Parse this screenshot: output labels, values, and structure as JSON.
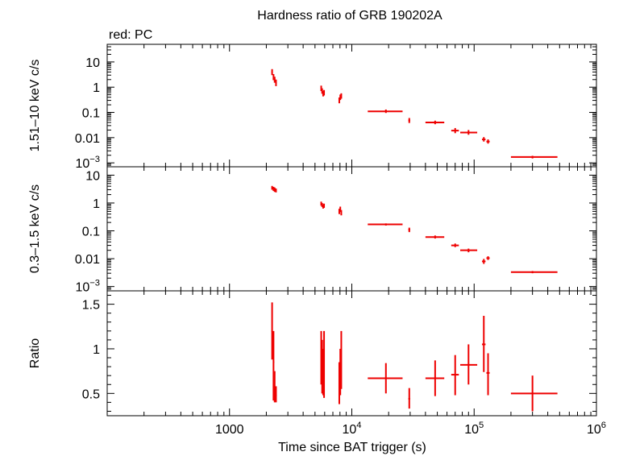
{
  "chart_data": {
    "type": "scatter",
    "title": "Hardness ratio of GRB 190202A",
    "subtitle": "red: PC",
    "xlabel": "Time since BAT trigger (s)",
    "x_scale": "log",
    "xlim": [
      100,
      1000000
    ],
    "x_tick_labels": [
      {
        "value": 1000,
        "label": "1000"
      },
      {
        "value": 10000,
        "label": "10",
        "sup": "4"
      },
      {
        "value": 100000,
        "label": "10",
        "sup": "5"
      },
      {
        "value": 1000000,
        "label": "10",
        "sup": "6"
      }
    ],
    "color": "#ee0000",
    "panels": [
      {
        "name": "hard",
        "ylabel": "1.51–10 keV c/s",
        "y_scale": "log",
        "ylim": [
          0.0007,
          50
        ],
        "y_tick_labels": [
          {
            "value": 10,
            "label": "10"
          },
          {
            "value": 1,
            "label": "1"
          },
          {
            "value": 0.1,
            "label": "0.1"
          },
          {
            "value": 0.01,
            "label": "0.01"
          },
          {
            "value": 0.001,
            "label": "10",
            "sup": "−3"
          }
        ],
        "points": [
          {
            "x": 2230,
            "y": 4.0,
            "xlo": 2200,
            "xhi": 2260,
            "ylo": 3.0,
            "yhi": 5.2
          },
          {
            "x": 2290,
            "y": 2.5,
            "xlo": 2260,
            "xhi": 2320,
            "ylo": 1.9,
            "yhi": 3.3
          },
          {
            "x": 2340,
            "y": 2.0,
            "xlo": 2310,
            "xhi": 2370,
            "ylo": 1.5,
            "yhi": 2.6
          },
          {
            "x": 2400,
            "y": 1.5,
            "xlo": 2370,
            "xhi": 2430,
            "ylo": 1.1,
            "yhi": 2.0
          },
          {
            "x": 5620,
            "y": 0.9,
            "xlo": 5580,
            "xhi": 5660,
            "ylo": 0.7,
            "yhi": 1.15
          },
          {
            "x": 5720,
            "y": 0.7,
            "xlo": 5680,
            "xhi": 5760,
            "ylo": 0.55,
            "yhi": 0.9
          },
          {
            "x": 5830,
            "y": 0.55,
            "xlo": 5790,
            "xhi": 5870,
            "ylo": 0.43,
            "yhi": 0.7
          },
          {
            "x": 5930,
            "y": 0.6,
            "xlo": 5890,
            "xhi": 5970,
            "ylo": 0.47,
            "yhi": 0.77
          },
          {
            "x": 7900,
            "y": 0.3,
            "xlo": 7850,
            "xhi": 7950,
            "ylo": 0.23,
            "yhi": 0.39
          },
          {
            "x": 8050,
            "y": 0.4,
            "xlo": 8000,
            "xhi": 8100,
            "ylo": 0.31,
            "yhi": 0.51
          },
          {
            "x": 8200,
            "y": 0.45,
            "xlo": 8150,
            "xhi": 8250,
            "ylo": 0.35,
            "yhi": 0.57
          },
          {
            "x": 19000,
            "y": 0.11,
            "xlo": 13500,
            "xhi": 26000,
            "ylo": 0.095,
            "yhi": 0.13
          },
          {
            "x": 29500,
            "y": 0.048,
            "xlo": 29000,
            "xhi": 30000,
            "ylo": 0.038,
            "yhi": 0.06
          },
          {
            "x": 48000,
            "y": 0.04,
            "xlo": 40000,
            "xhi": 57000,
            "ylo": 0.034,
            "yhi": 0.047
          },
          {
            "x": 70000,
            "y": 0.019,
            "xlo": 65000,
            "xhi": 75000,
            "ylo": 0.015,
            "yhi": 0.024
          },
          {
            "x": 90000,
            "y": 0.016,
            "xlo": 77000,
            "xhi": 106000,
            "ylo": 0.013,
            "yhi": 0.02
          },
          {
            "x": 120000,
            "y": 0.0085,
            "xlo": 116000,
            "xhi": 124000,
            "ylo": 0.007,
            "yhi": 0.0105
          },
          {
            "x": 130000,
            "y": 0.007,
            "xlo": 126000,
            "xhi": 134000,
            "ylo": 0.0058,
            "yhi": 0.0085
          },
          {
            "x": 300000,
            "y": 0.0017,
            "xlo": 200000,
            "xhi": 480000,
            "ylo": 0.0015,
            "yhi": 0.0019
          }
        ]
      },
      {
        "name": "soft",
        "ylabel": "0.3–1.5 keV c/s",
        "y_scale": "log",
        "ylim": [
          0.0007,
          20
        ],
        "y_tick_labels": [
          {
            "value": 10,
            "label": "10"
          },
          {
            "value": 1,
            "label": "1"
          },
          {
            "value": 0.1,
            "label": "0.1"
          },
          {
            "value": 0.01,
            "label": "0.01"
          },
          {
            "value": 0.001,
            "label": "10",
            "sup": "−3"
          }
        ],
        "points": [
          {
            "x": 2230,
            "y": 3.5,
            "xlo": 2200,
            "xhi": 2260,
            "ylo": 3.0,
            "yhi": 4.1
          },
          {
            "x": 2290,
            "y": 3.2,
            "xlo": 2260,
            "xhi": 2320,
            "ylo": 2.7,
            "yhi": 3.8
          },
          {
            "x": 2340,
            "y": 3.0,
            "xlo": 2310,
            "xhi": 2370,
            "ylo": 2.5,
            "yhi": 3.6
          },
          {
            "x": 2400,
            "y": 2.8,
            "xlo": 2370,
            "xhi": 2430,
            "ylo": 2.4,
            "yhi": 3.3
          },
          {
            "x": 5620,
            "y": 0.95,
            "xlo": 5580,
            "xhi": 5660,
            "ylo": 0.8,
            "yhi": 1.12
          },
          {
            "x": 5720,
            "y": 0.85,
            "xlo": 5680,
            "xhi": 5760,
            "ylo": 0.72,
            "yhi": 1.0
          },
          {
            "x": 5830,
            "y": 0.75,
            "xlo": 5790,
            "xhi": 5870,
            "ylo": 0.63,
            "yhi": 0.89
          },
          {
            "x": 5930,
            "y": 0.8,
            "xlo": 5890,
            "xhi": 5970,
            "ylo": 0.67,
            "yhi": 0.95
          },
          {
            "x": 7900,
            "y": 0.5,
            "xlo": 7850,
            "xhi": 7950,
            "ylo": 0.4,
            "yhi": 0.62
          },
          {
            "x": 8050,
            "y": 0.6,
            "xlo": 8000,
            "xhi": 8100,
            "ylo": 0.48,
            "yhi": 0.74
          },
          {
            "x": 8200,
            "y": 0.45,
            "xlo": 8150,
            "xhi": 8250,
            "ylo": 0.36,
            "yhi": 0.56
          },
          {
            "x": 19000,
            "y": 0.17,
            "xlo": 13500,
            "xhi": 26000,
            "ylo": 0.155,
            "yhi": 0.185
          },
          {
            "x": 29500,
            "y": 0.11,
            "xlo": 29000,
            "xhi": 30000,
            "ylo": 0.09,
            "yhi": 0.13
          },
          {
            "x": 48000,
            "y": 0.06,
            "xlo": 40000,
            "xhi": 57000,
            "ylo": 0.053,
            "yhi": 0.068
          },
          {
            "x": 70000,
            "y": 0.03,
            "xlo": 65000,
            "xhi": 75000,
            "ylo": 0.026,
            "yhi": 0.035
          },
          {
            "x": 90000,
            "y": 0.02,
            "xlo": 77000,
            "xhi": 106000,
            "ylo": 0.017,
            "yhi": 0.023
          },
          {
            "x": 120000,
            "y": 0.008,
            "xlo": 116000,
            "xhi": 124000,
            "ylo": 0.0065,
            "yhi": 0.0098
          },
          {
            "x": 130000,
            "y": 0.0105,
            "xlo": 126000,
            "xhi": 134000,
            "ylo": 0.009,
            "yhi": 0.0122
          },
          {
            "x": 300000,
            "y": 0.0033,
            "xlo": 200000,
            "xhi": 480000,
            "ylo": 0.003,
            "yhi": 0.0036
          }
        ]
      },
      {
        "name": "ratio",
        "ylabel": "Ratio",
        "y_scale": "linear",
        "ylim": [
          0.25,
          1.65
        ],
        "y_tick_labels": [
          {
            "value": 1.5,
            "label": "1.5"
          },
          {
            "value": 1,
            "label": "1"
          },
          {
            "value": 0.5,
            "label": "0.5"
          }
        ],
        "points": [
          {
            "x": 2230,
            "y": 1.2,
            "xlo": 2200,
            "xhi": 2260,
            "ylo": 0.88,
            "yhi": 1.52
          },
          {
            "x": 2290,
            "y": 0.85,
            "xlo": 2260,
            "xhi": 2320,
            "ylo": 0.42,
            "yhi": 1.2
          },
          {
            "x": 2340,
            "y": 0.55,
            "xlo": 2310,
            "xhi": 2370,
            "ylo": 0.4,
            "yhi": 0.75
          },
          {
            "x": 2400,
            "y": 0.48,
            "xlo": 2370,
            "xhi": 2430,
            "ylo": 0.4,
            "yhi": 0.58
          },
          {
            "x": 5620,
            "y": 0.93,
            "xlo": 5580,
            "xhi": 5660,
            "ylo": 0.6,
            "yhi": 1.2
          },
          {
            "x": 5720,
            "y": 0.82,
            "xlo": 5680,
            "xhi": 5760,
            "ylo": 0.5,
            "yhi": 1.1
          },
          {
            "x": 5830,
            "y": 0.72,
            "xlo": 5790,
            "xhi": 5870,
            "ylo": 0.48,
            "yhi": 1.0
          },
          {
            "x": 5930,
            "y": 0.75,
            "xlo": 5890,
            "xhi": 5970,
            "ylo": 0.45,
            "yhi": 1.2
          },
          {
            "x": 7900,
            "y": 0.62,
            "xlo": 7850,
            "xhi": 7950,
            "ylo": 0.38,
            "yhi": 0.85
          },
          {
            "x": 8050,
            "y": 0.72,
            "xlo": 8000,
            "xhi": 8100,
            "ylo": 0.48,
            "yhi": 1.0
          },
          {
            "x": 8200,
            "y": 0.9,
            "xlo": 8150,
            "xhi": 8250,
            "ylo": 0.55,
            "yhi": 1.2
          },
          {
            "x": 19000,
            "y": 0.67,
            "xlo": 13500,
            "xhi": 26000,
            "ylo": 0.5,
            "yhi": 0.84
          },
          {
            "x": 29500,
            "y": 0.44,
            "xlo": 29000,
            "xhi": 30000,
            "ylo": 0.33,
            "yhi": 0.56
          },
          {
            "x": 48000,
            "y": 0.67,
            "xlo": 40000,
            "xhi": 57000,
            "ylo": 0.47,
            "yhi": 0.87
          },
          {
            "x": 70000,
            "y": 0.71,
            "xlo": 65000,
            "xhi": 75000,
            "ylo": 0.48,
            "yhi": 0.93
          },
          {
            "x": 90000,
            "y": 0.82,
            "xlo": 77000,
            "xhi": 106000,
            "ylo": 0.6,
            "yhi": 1.05
          },
          {
            "x": 120000,
            "y": 1.05,
            "xlo": 116000,
            "xhi": 124000,
            "ylo": 0.74,
            "yhi": 1.37
          },
          {
            "x": 130000,
            "y": 0.73,
            "xlo": 126000,
            "xhi": 134000,
            "ylo": 0.48,
            "yhi": 0.95
          },
          {
            "x": 300000,
            "y": 0.5,
            "xlo": 200000,
            "xhi": 480000,
            "ylo": 0.3,
            "yhi": 0.7
          }
        ]
      }
    ]
  }
}
